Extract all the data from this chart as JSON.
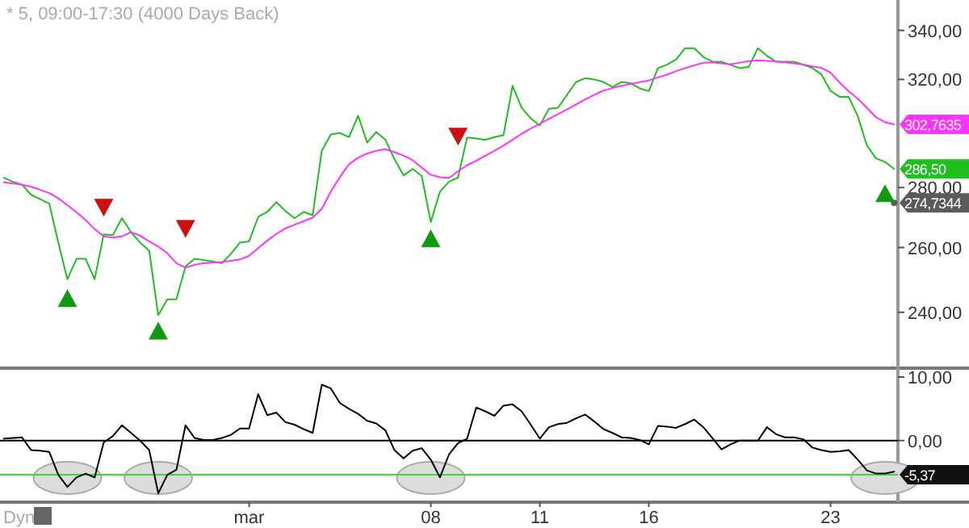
{
  "chart_data": [
    {
      "type": "line",
      "title": "* 5, 09:00-17:30 (4000 Days Back)",
      "log": true,
      "ylim": [
        224,
        353
      ],
      "yticks": [
        {
          "value": 240,
          "label": "240,00"
        },
        {
          "value": 260,
          "label": "260,00"
        },
        {
          "value": 280,
          "label": "280,00"
        },
        {
          "value": 320,
          "label": "320,00"
        },
        {
          "value": 340,
          "label": "340,00"
        }
      ],
      "tick_labels": "y",
      "categories": [
        null,
        null,
        null,
        null,
        null,
        null,
        null,
        null,
        null,
        null,
        null,
        null,
        null,
        null,
        null,
        null,
        null,
        null,
        null,
        null,
        null,
        null,
        null,
        null,
        null,
        null,
        null,
        null,
        null,
        null,
        null,
        null,
        null,
        null,
        null,
        null,
        null,
        null,
        null,
        null,
        null,
        null,
        null,
        null,
        null,
        null,
        null,
        null,
        null,
        null,
        null,
        null,
        null,
        null,
        null,
        null,
        null,
        null,
        null,
        null,
        null,
        null,
        null,
        null,
        null,
        null,
        null,
        null,
        null,
        null,
        null,
        null,
        null,
        null,
        null,
        null,
        null,
        null,
        null,
        null,
        null,
        null,
        null,
        null,
        null,
        null,
        null,
        null,
        null,
        null,
        null,
        null,
        null,
        null,
        null,
        null,
        null,
        null,
        null
      ],
      "series": [
        {
          "color": "#1fbf1f",
          "values": [
            283.4,
            282,
            281,
            277.5,
            276,
            274.5,
            261.6,
            250,
            256.4,
            256.4,
            250,
            264.3,
            264,
            269.6,
            265,
            261.6,
            259,
            239.1,
            243.9,
            243.9,
            254,
            256.4,
            256,
            255.5,
            255,
            258,
            261.6,
            262,
            270,
            271.7,
            275,
            272,
            269.6,
            271.7,
            270.6,
            293,
            299,
            299.5,
            298,
            306,
            296,
            299.9,
            297,
            290,
            284.2,
            286.5,
            284,
            268.3,
            278.5,
            282,
            283.5,
            297.9,
            297.5,
            297,
            298,
            298.7,
            317.5,
            309,
            305,
            302.3,
            308.6,
            309,
            314,
            319,
            320.5,
            320,
            319,
            317,
            319,
            318.5,
            316.5,
            315.4,
            324.5,
            325.9,
            328,
            332.6,
            332.6,
            329,
            327.1,
            327.1,
            325.8,
            324.5,
            325,
            332.6,
            329.5,
            327.1,
            327.1,
            327.1,
            325.9,
            324.5,
            322,
            315.5,
            313.2,
            313.2,
            305.8,
            295,
            290.3,
            289,
            286.5
          ],
          "value_labels": [
            null,
            null,
            null,
            null,
            null,
            null,
            null,
            null,
            null,
            null,
            null,
            null,
            null,
            null,
            null,
            null,
            null,
            null,
            null,
            null,
            null,
            null,
            null,
            null,
            null,
            null,
            null,
            null,
            null,
            null,
            null,
            null,
            null,
            null,
            null,
            null,
            null,
            null,
            null,
            null,
            null,
            null,
            null,
            null,
            null,
            null,
            null,
            null,
            null,
            null,
            null,
            null,
            null,
            null,
            null,
            null,
            null,
            null,
            null,
            null,
            null,
            null,
            null,
            null,
            null,
            null,
            null,
            null,
            null,
            null,
            null,
            null,
            null,
            null,
            null,
            null,
            null,
            null,
            null,
            null,
            null,
            null,
            null,
            null,
            null,
            null,
            null,
            null,
            null,
            null,
            null,
            null,
            null,
            null,
            null,
            null,
            null,
            null,
            "286,50"
          ]
        },
        {
          "color": "#ff33ff",
          "values": [
            281.8,
            281.4,
            281,
            280.3,
            279.2,
            278.1,
            276.3,
            274,
            271.6,
            269,
            266,
            263.6,
            263.2,
            263.6,
            265,
            263.8,
            262,
            260.3,
            258.2,
            255,
            253.6,
            254.5,
            255,
            255.2,
            255.4,
            255.8,
            256.2,
            257.3,
            259.8,
            262.2,
            264.4,
            266.2,
            267.4,
            268.6,
            269.8,
            272.7,
            278.6,
            283.7,
            288.2,
            290.5,
            292,
            293,
            293.6,
            292.5,
            291.3,
            289.6,
            287,
            284.4,
            283.6,
            283.3,
            285.7,
            287.8,
            289.4,
            291.2,
            293,
            294.9,
            297,
            299.2,
            301.2,
            302.9,
            304.8,
            306.6,
            308.4,
            310.3,
            312.2,
            314,
            315.6,
            316.6,
            317.5,
            318.2,
            318.9,
            319.6,
            320.8,
            321.9,
            323.3,
            324.5,
            325.6,
            326.7,
            326.8,
            326.4,
            326,
            326.7,
            327.3,
            327.6,
            327.4,
            327.2,
            326.8,
            326.4,
            325.9,
            325.2,
            324.6,
            322.7,
            318.8,
            315.4,
            312.5,
            309,
            305.4,
            303.5,
            302.7635
          ],
          "value_labels": [
            null,
            null,
            null,
            null,
            null,
            null,
            null,
            null,
            null,
            null,
            null,
            null,
            null,
            null,
            null,
            null,
            null,
            null,
            null,
            null,
            null,
            null,
            null,
            null,
            null,
            null,
            null,
            null,
            null,
            null,
            null,
            null,
            null,
            null,
            null,
            null,
            null,
            null,
            null,
            null,
            null,
            null,
            null,
            null,
            null,
            null,
            null,
            null,
            null,
            null,
            null,
            null,
            null,
            null,
            null,
            null,
            null,
            null,
            null,
            null,
            null,
            null,
            null,
            null,
            null,
            null,
            null,
            null,
            null,
            null,
            null,
            null,
            null,
            null,
            null,
            null,
            null,
            null,
            null,
            null,
            null,
            null,
            null,
            null,
            null,
            null,
            null,
            null,
            null,
            null,
            null,
            null,
            null,
            null,
            null,
            null,
            null,
            null,
            "302,7635"
          ]
        },
        {
          "type": "scatter",
          "marker": "circle",
          "color": "#5a5a5a",
          "values": [
            null,
            null,
            null,
            null,
            null,
            null,
            null,
            null,
            null,
            null,
            null,
            null,
            null,
            null,
            null,
            null,
            null,
            null,
            null,
            null,
            null,
            null,
            null,
            null,
            null,
            null,
            null,
            null,
            null,
            null,
            null,
            null,
            null,
            null,
            null,
            null,
            null,
            null,
            null,
            null,
            null,
            null,
            null,
            null,
            null,
            null,
            null,
            null,
            null,
            null,
            null,
            null,
            null,
            null,
            null,
            null,
            null,
            null,
            null,
            null,
            null,
            null,
            null,
            null,
            null,
            null,
            null,
            null,
            null,
            null,
            null,
            null,
            null,
            null,
            null,
            null,
            null,
            null,
            null,
            null,
            null,
            null,
            null,
            null,
            null,
            null,
            null,
            null,
            null,
            null,
            null,
            null,
            null,
            null,
            null,
            null,
            null,
            null,
            274.7344
          ],
          "value_labels": [
            null,
            null,
            null,
            null,
            null,
            null,
            null,
            null,
            null,
            null,
            null,
            null,
            null,
            null,
            null,
            null,
            null,
            null,
            null,
            null,
            null,
            null,
            null,
            null,
            null,
            null,
            null,
            null,
            null,
            null,
            null,
            null,
            null,
            null,
            null,
            null,
            null,
            null,
            null,
            null,
            null,
            null,
            null,
            null,
            null,
            null,
            null,
            null,
            null,
            null,
            null,
            null,
            null,
            null,
            null,
            null,
            null,
            null,
            null,
            null,
            null,
            null,
            null,
            null,
            null,
            null,
            null,
            null,
            null,
            null,
            null,
            null,
            null,
            null,
            null,
            null,
            null,
            null,
            null,
            null,
            null,
            null,
            null,
            null,
            null,
            null,
            null,
            null,
            null,
            null,
            null,
            null,
            null,
            null,
            null,
            null,
            null,
            null,
            "274,7344"
          ]
        },
        {
          "type": "scatter",
          "marker": "triangle",
          "color": "#119a11",
          "values": [
            null,
            null,
            null,
            null,
            null,
            null,
            null,
            244,
            null,
            null,
            null,
            null,
            null,
            null,
            null,
            null,
            null,
            234.4,
            null,
            null,
            null,
            null,
            null,
            null,
            null,
            null,
            null,
            null,
            null,
            null,
            null,
            null,
            null,
            null,
            null,
            null,
            null,
            null,
            null,
            null,
            null,
            null,
            null,
            null,
            null,
            null,
            null,
            262.7,
            null,
            null,
            null,
            null,
            null,
            null,
            null,
            null,
            null,
            null,
            null,
            null,
            null,
            null,
            null,
            null,
            null,
            null,
            null,
            null,
            null,
            null,
            null,
            null,
            null,
            null,
            null,
            null,
            null,
            null,
            null,
            null,
            null,
            null,
            null,
            null,
            null,
            null,
            null,
            null,
            null,
            null,
            null,
            null,
            null,
            null,
            null,
            null,
            null,
            277.8,
            null
          ]
        },
        {
          "type": "scatter",
          "marker": "triangle",
          "color": "#cc1111",
          "values": [
            null,
            null,
            null,
            null,
            null,
            null,
            null,
            null,
            null,
            null,
            null,
            273.4,
            null,
            null,
            null,
            null,
            null,
            null,
            null,
            null,
            266.3,
            null,
            null,
            null,
            null,
            null,
            null,
            null,
            null,
            null,
            null,
            null,
            null,
            null,
            null,
            null,
            null,
            null,
            null,
            null,
            null,
            null,
            null,
            null,
            null,
            null,
            null,
            null,
            null,
            null,
            298.5,
            null,
            null,
            null,
            null,
            null,
            null,
            null,
            null,
            null,
            null,
            null,
            null,
            null,
            null,
            null,
            null,
            null,
            null,
            null,
            null,
            null,
            null,
            null,
            null,
            null,
            null,
            null,
            null,
            null,
            null,
            null,
            null,
            null,
            null,
            null,
            null,
            null,
            null,
            null,
            null,
            null,
            null,
            null,
            null,
            null,
            null,
            null,
            null
          ]
        }
      ]
    },
    {
      "type": "line",
      "ylim": [
        -9.7,
        11.4
      ],
      "yticks": [
        {
          "value": 10,
          "label": "10,00"
        },
        {
          "value": 0,
          "label": "0,00"
        }
      ],
      "categories": [
        null,
        null,
        null,
        null,
        null,
        null,
        null,
        null,
        null,
        null,
        null,
        null,
        null,
        null,
        null,
        null,
        null,
        null,
        null,
        null,
        null,
        null,
        null,
        null,
        null,
        null,
        null,
        "mar",
        null,
        null,
        null,
        null,
        null,
        null,
        null,
        null,
        null,
        null,
        null,
        null,
        null,
        null,
        null,
        null,
        null,
        null,
        null,
        "08",
        null,
        null,
        null,
        null,
        null,
        null,
        null,
        null,
        null,
        null,
        null,
        "11",
        null,
        null,
        null,
        null,
        null,
        null,
        null,
        null,
        null,
        null,
        null,
        "16",
        null,
        null,
        null,
        null,
        null,
        null,
        null,
        null,
        null,
        null,
        null,
        null,
        null,
        null,
        null,
        null,
        null,
        null,
        null,
        "23",
        null,
        null,
        null,
        null,
        null,
        null,
        null
      ],
      "annotations": [
        "Dyn"
      ],
      "ref_lines": [
        {
          "axis": "y",
          "value": 0,
          "color": "#000000"
        },
        {
          "axis": "y",
          "value": -5.37,
          "label": "-5,37",
          "color": "#33dd33"
        }
      ],
      "series": [
        {
          "color": "#000000",
          "values": [
            0.3,
            0.4,
            0.5,
            -1.5,
            -1.6,
            -1.8,
            -5.4,
            -7.3,
            -5.8,
            -5.2,
            -5.8,
            -0.3,
            0.7,
            2.4,
            1.2,
            0,
            -1.5,
            -8.3,
            -5.4,
            -4.6,
            2.4,
            0.4,
            0.1,
            0.1,
            0.4,
            0.9,
            1.9,
            1.9,
            7.3,
            4,
            4.4,
            2.9,
            2.5,
            1.8,
            1.2,
            8.8,
            8.2,
            5.9,
            5,
            4.2,
            3.1,
            2.7,
            1.6,
            -1.5,
            -2.8,
            -1.6,
            -1.2,
            -3,
            -5.8,
            -2.2,
            -0.4,
            0.3,
            5.2,
            4.6,
            3.9,
            5.5,
            5.7,
            4.6,
            2.5,
            0.3,
            2.1,
            2.6,
            2.8,
            3.5,
            4.1,
            3,
            1.8,
            1.2,
            0.5,
            0.4,
            0.1,
            -0.6,
            2.3,
            2.2,
            2,
            2.6,
            3.3,
            2.1,
            0.4,
            -1.4,
            -0.6,
            0,
            0,
            0,
            2.1,
            1,
            0.5,
            0.5,
            0.2,
            -1.1,
            -1.5,
            -1.8,
            -1.7,
            -1.5,
            -3,
            -4.7,
            -5.2,
            -5.2,
            -4.9
          ]
        }
      ]
    }
  ]
}
